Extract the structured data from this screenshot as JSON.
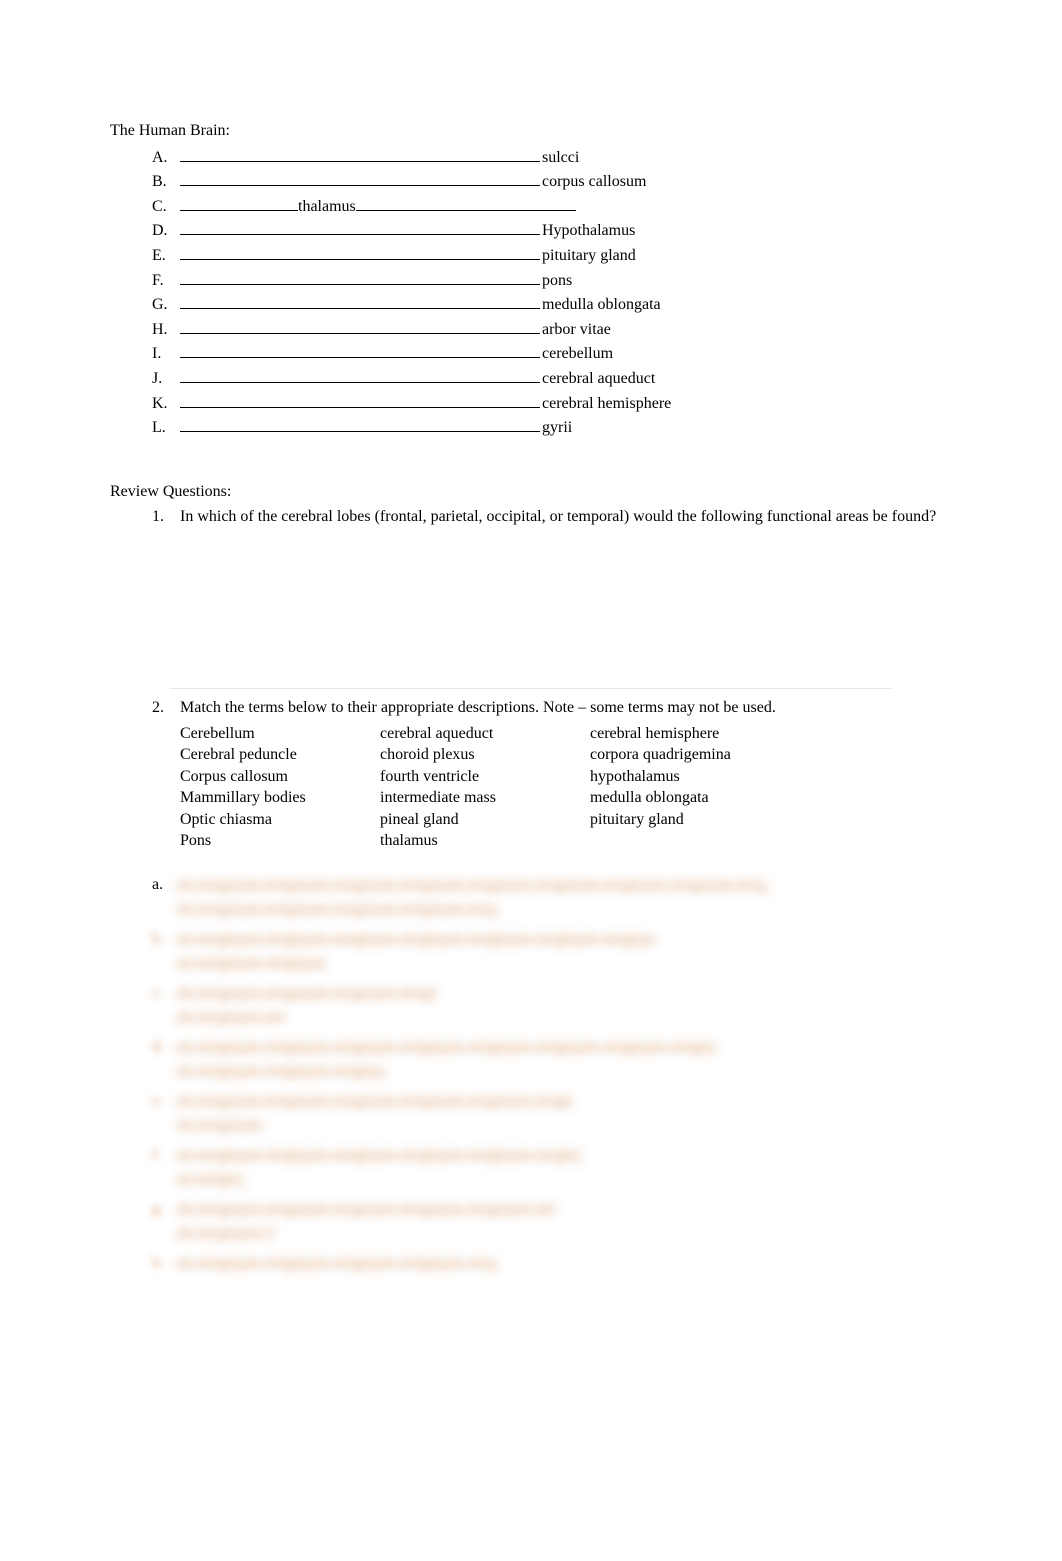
{
  "title": "The Human Brain:",
  "items": [
    {
      "letter": "A.",
      "term": "sulcci",
      "layout": "normal"
    },
    {
      "letter": "B.",
      "term": "corpus callosum",
      "layout": "normal"
    },
    {
      "letter": "C.",
      "mid": "thalamus",
      "layout": "split"
    },
    {
      "letter": "D.",
      "term": "Hypothalamus",
      "layout": "normal"
    },
    {
      "letter": "E.",
      "term": "pituitary gland",
      "layout": "normal"
    },
    {
      "letter": "F.",
      "term": "pons",
      "layout": "normal"
    },
    {
      "letter": "G.",
      "term": "medulla oblongata",
      "layout": "normal"
    },
    {
      "letter": "H.",
      "term": "arbor vitae",
      "layout": "normal"
    },
    {
      "letter": "I.",
      "term": "cerebellum",
      "layout": "normal"
    },
    {
      "letter": "J.",
      "term": "cerebral aqueduct",
      "layout": "normal"
    },
    {
      "letter": "K.",
      "term": "cerebral hemisphere",
      "layout": "normal"
    },
    {
      "letter": "L.",
      "term": "gyrii",
      "layout": "normal"
    }
  ],
  "review_title": "Review Questions:",
  "q1": {
    "num": "1.",
    "text": "In which of the cerebral lobes (frontal, parietal, occipital, or temporal) would the following functional areas be found?"
  },
  "q2": {
    "num": "2.",
    "text": "Match the terms below to their appropriate descriptions. Note – some terms may not be used."
  },
  "bank": [
    [
      "Cerebellum",
      "cerebral aqueduct",
      "cerebral hemisphere"
    ],
    [
      "Cerebral peduncle",
      "choroid plexus",
      "corpora quadrigemina"
    ],
    [
      "Corpus callosum",
      "fourth ventricle",
      "hypothalamus"
    ],
    [
      "Mammillary bodies",
      "intermediate mass",
      "medulla oblongata"
    ],
    [
      "Optic chiasma",
      "pineal gland",
      "pituitary gland"
    ],
    [
      "Pons",
      "thalamus",
      ""
    ]
  ],
  "answers": [
    {
      "letter": "a.",
      "widths": [
        780,
        420
      ]
    },
    {
      "letter": "b.",
      "widths": [
        640,
        200
      ]
    },
    {
      "letter": "c.",
      "widths": [
        340,
        140
      ]
    },
    {
      "letter": "d.",
      "widths": [
        720,
        280
      ]
    },
    {
      "letter": "e.",
      "widths": [
        520,
        120
      ]
    },
    {
      "letter": "f.",
      "widths": [
        540,
        90
      ]
    },
    {
      "letter": "g.",
      "widths": [
        500,
        130
      ]
    },
    {
      "letter": "h.",
      "widths": [
        420
      ]
    }
  ],
  "blur_color": "#c97a3a"
}
